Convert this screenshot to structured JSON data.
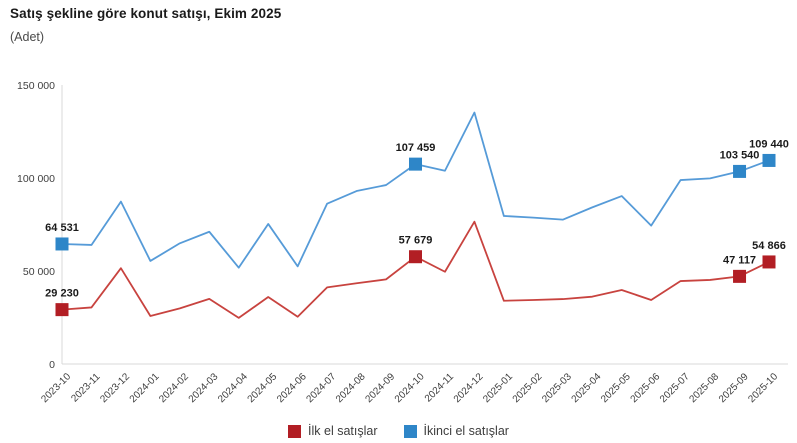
{
  "header": {
    "title": "Satış şekline göre konut satışı, Ekim 2025",
    "subtitle": "(Adet)"
  },
  "chart_data": {
    "type": "line",
    "title": "Satış şekline göre konut satışı, Ekim 2025",
    "unit_label": "(Adet)",
    "categories": [
      "2023-10",
      "2023-11",
      "2023-12",
      "2024-01",
      "2024-02",
      "2024-03",
      "2024-04",
      "2024-05",
      "2024-06",
      "2024-07",
      "2024-08",
      "2024-09",
      "2024-10",
      "2024-11",
      "2024-12",
      "2025-01",
      "2025-02",
      "2025-03",
      "2025-04",
      "2025-05",
      "2025-06",
      "2025-07",
      "2025-08",
      "2025-09",
      "2025-10"
    ],
    "series": [
      {
        "name": "İlk el satışlar",
        "line_color": "#c8433f",
        "marker_color": "#b21e24",
        "values": [
          29230,
          30400,
          51500,
          25800,
          29900,
          35000,
          24800,
          36000,
          25400,
          41200,
          43400,
          45500,
          57679,
          49600,
          76500,
          34000,
          34400,
          34900,
          36200,
          39800,
          34400,
          44600,
          45200,
          47117,
          54866
        ],
        "annotated_indices": [
          0,
          12,
          23,
          24
        ],
        "annotated_labels": [
          "29 230",
          "57 679",
          "47 117",
          "54 866"
        ]
      },
      {
        "name": "İkinci el satışlar",
        "line_color": "#569bd8",
        "marker_color": "#2e86c8",
        "values": [
          64531,
          64000,
          87300,
          55400,
          64900,
          71100,
          51800,
          75300,
          52500,
          86200,
          93000,
          96200,
          107459,
          103900,
          135200,
          79600,
          78700,
          77600,
          84200,
          90300,
          74400,
          98900,
          99800,
          103540,
          109440
        ],
        "annotated_indices": [
          0,
          12,
          23,
          24
        ],
        "annotated_labels": [
          "64 531",
          "107 459",
          "103 540",
          "109 440"
        ]
      }
    ],
    "ylim": [
      0,
      150000
    ],
    "ytick_values": [
      0,
      50000,
      100000,
      150000
    ],
    "ytick_labels": [
      "0",
      "50 000",
      "100 000",
      "150 000"
    ],
    "xlabel": "",
    "ylabel": "",
    "grid": "off",
    "legend_position": "bottom",
    "axis_color": "#d9d9d9",
    "tick_label_color": "#404040",
    "data_label_color": "#1a1a1a"
  }
}
